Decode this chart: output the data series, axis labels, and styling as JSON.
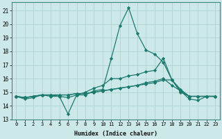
{
  "xlabel": "Humidex (Indice chaleur)",
  "background_color": "#cce8e8",
  "grid_color": "#aacece",
  "line_color": "#1a7a6e",
  "xlim": [
    -0.5,
    23.5
  ],
  "ylim": [
    13,
    21.6
  ],
  "yticks": [
    13,
    14,
    15,
    16,
    17,
    18,
    19,
    20,
    21
  ],
  "xticks": [
    0,
    1,
    2,
    3,
    4,
    5,
    6,
    7,
    8,
    9,
    10,
    11,
    12,
    13,
    14,
    15,
    16,
    17,
    18,
    19,
    20,
    21,
    22,
    23
  ],
  "series": [
    [
      14.7,
      14.5,
      14.6,
      14.8,
      14.7,
      14.7,
      13.4,
      14.8,
      14.8,
      15.1,
      15.2,
      17.5,
      19.9,
      21.2,
      19.3,
      18.1,
      17.8,
      17.2,
      15.9,
      15.1,
      14.5,
      14.4,
      14.7,
      14.7
    ],
    [
      14.7,
      14.6,
      14.7,
      14.8,
      14.8,
      14.7,
      14.6,
      14.8,
      15.0,
      15.3,
      15.5,
      16.0,
      16.0,
      16.2,
      16.3,
      16.5,
      16.6,
      17.5,
      15.9,
      15.2,
      14.7,
      14.7,
      14.7,
      14.7
    ],
    [
      14.7,
      14.6,
      14.7,
      14.8,
      14.8,
      14.8,
      14.8,
      14.9,
      14.9,
      15.0,
      15.1,
      15.2,
      15.3,
      15.4,
      15.5,
      15.7,
      15.8,
      16.0,
      15.5,
      15.1,
      14.7,
      14.7,
      14.7,
      14.7
    ],
    [
      14.7,
      14.6,
      14.7,
      14.8,
      14.8,
      14.8,
      14.8,
      14.9,
      14.9,
      15.0,
      15.1,
      15.2,
      15.3,
      15.4,
      15.5,
      15.6,
      15.7,
      15.9,
      15.9,
      15.0,
      14.7,
      14.7,
      14.7,
      14.7
    ]
  ]
}
